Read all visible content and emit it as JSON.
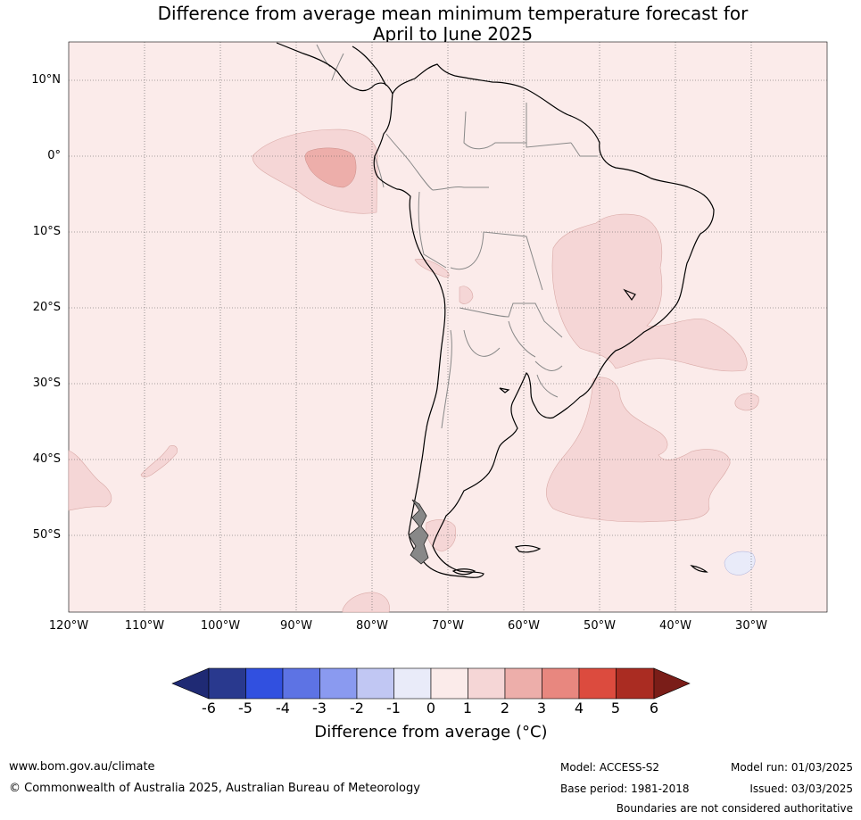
{
  "title": {
    "line1": "Difference from average mean minimum temperature forecast for",
    "line2": "April to June 2025"
  },
  "map": {
    "lat_labels": [
      "10°N",
      "0°",
      "10°S",
      "20°S",
      "30°S",
      "40°S",
      "50°S"
    ],
    "lon_labels": [
      "120°W",
      "110°W",
      "100°W",
      "90°W",
      "80°W",
      "70°W",
      "60°W",
      "50°W",
      "40°W",
      "30°W"
    ],
    "colors": {
      "background_anomaly": "#fbebea",
      "anomaly_1_2": "#f5d6d6",
      "anomaly_2_3": "#edaeaa",
      "anomaly_neg": "#e9ebf9",
      "gridline": "#555555",
      "coast": "#000000",
      "border": "#888888"
    }
  },
  "colorbar": {
    "ticks": [
      "-6",
      "-5",
      "-4",
      "-3",
      "-2",
      "-1",
      "0",
      "1",
      "2",
      "3",
      "4",
      "5",
      "6"
    ],
    "colors": [
      "#29398e",
      "#3150e0",
      "#5d73e4",
      "#8a9af0",
      "#c1c7f3",
      "#e9ebf9",
      "#fbebea",
      "#f5d6d6",
      "#edaeaa",
      "#e8877f",
      "#dc4b3e",
      "#aa2c22"
    ],
    "low_extend_color": "#1f2a74",
    "high_extend_color": "#7a1d18",
    "label": "Difference from average (°C)"
  },
  "footer": {
    "website": "www.bom.gov.au/climate",
    "copyright": "© Commonwealth of Australia 2025, Australian Bureau of Meteorology",
    "model": "Model: ACCESS-S2",
    "base_period": "Base period: 1981-2018",
    "model_run": "Model run: 01/03/2025",
    "issued": "Issued: 03/03/2025",
    "disclaimer": "Boundaries are not considered authoritative"
  }
}
